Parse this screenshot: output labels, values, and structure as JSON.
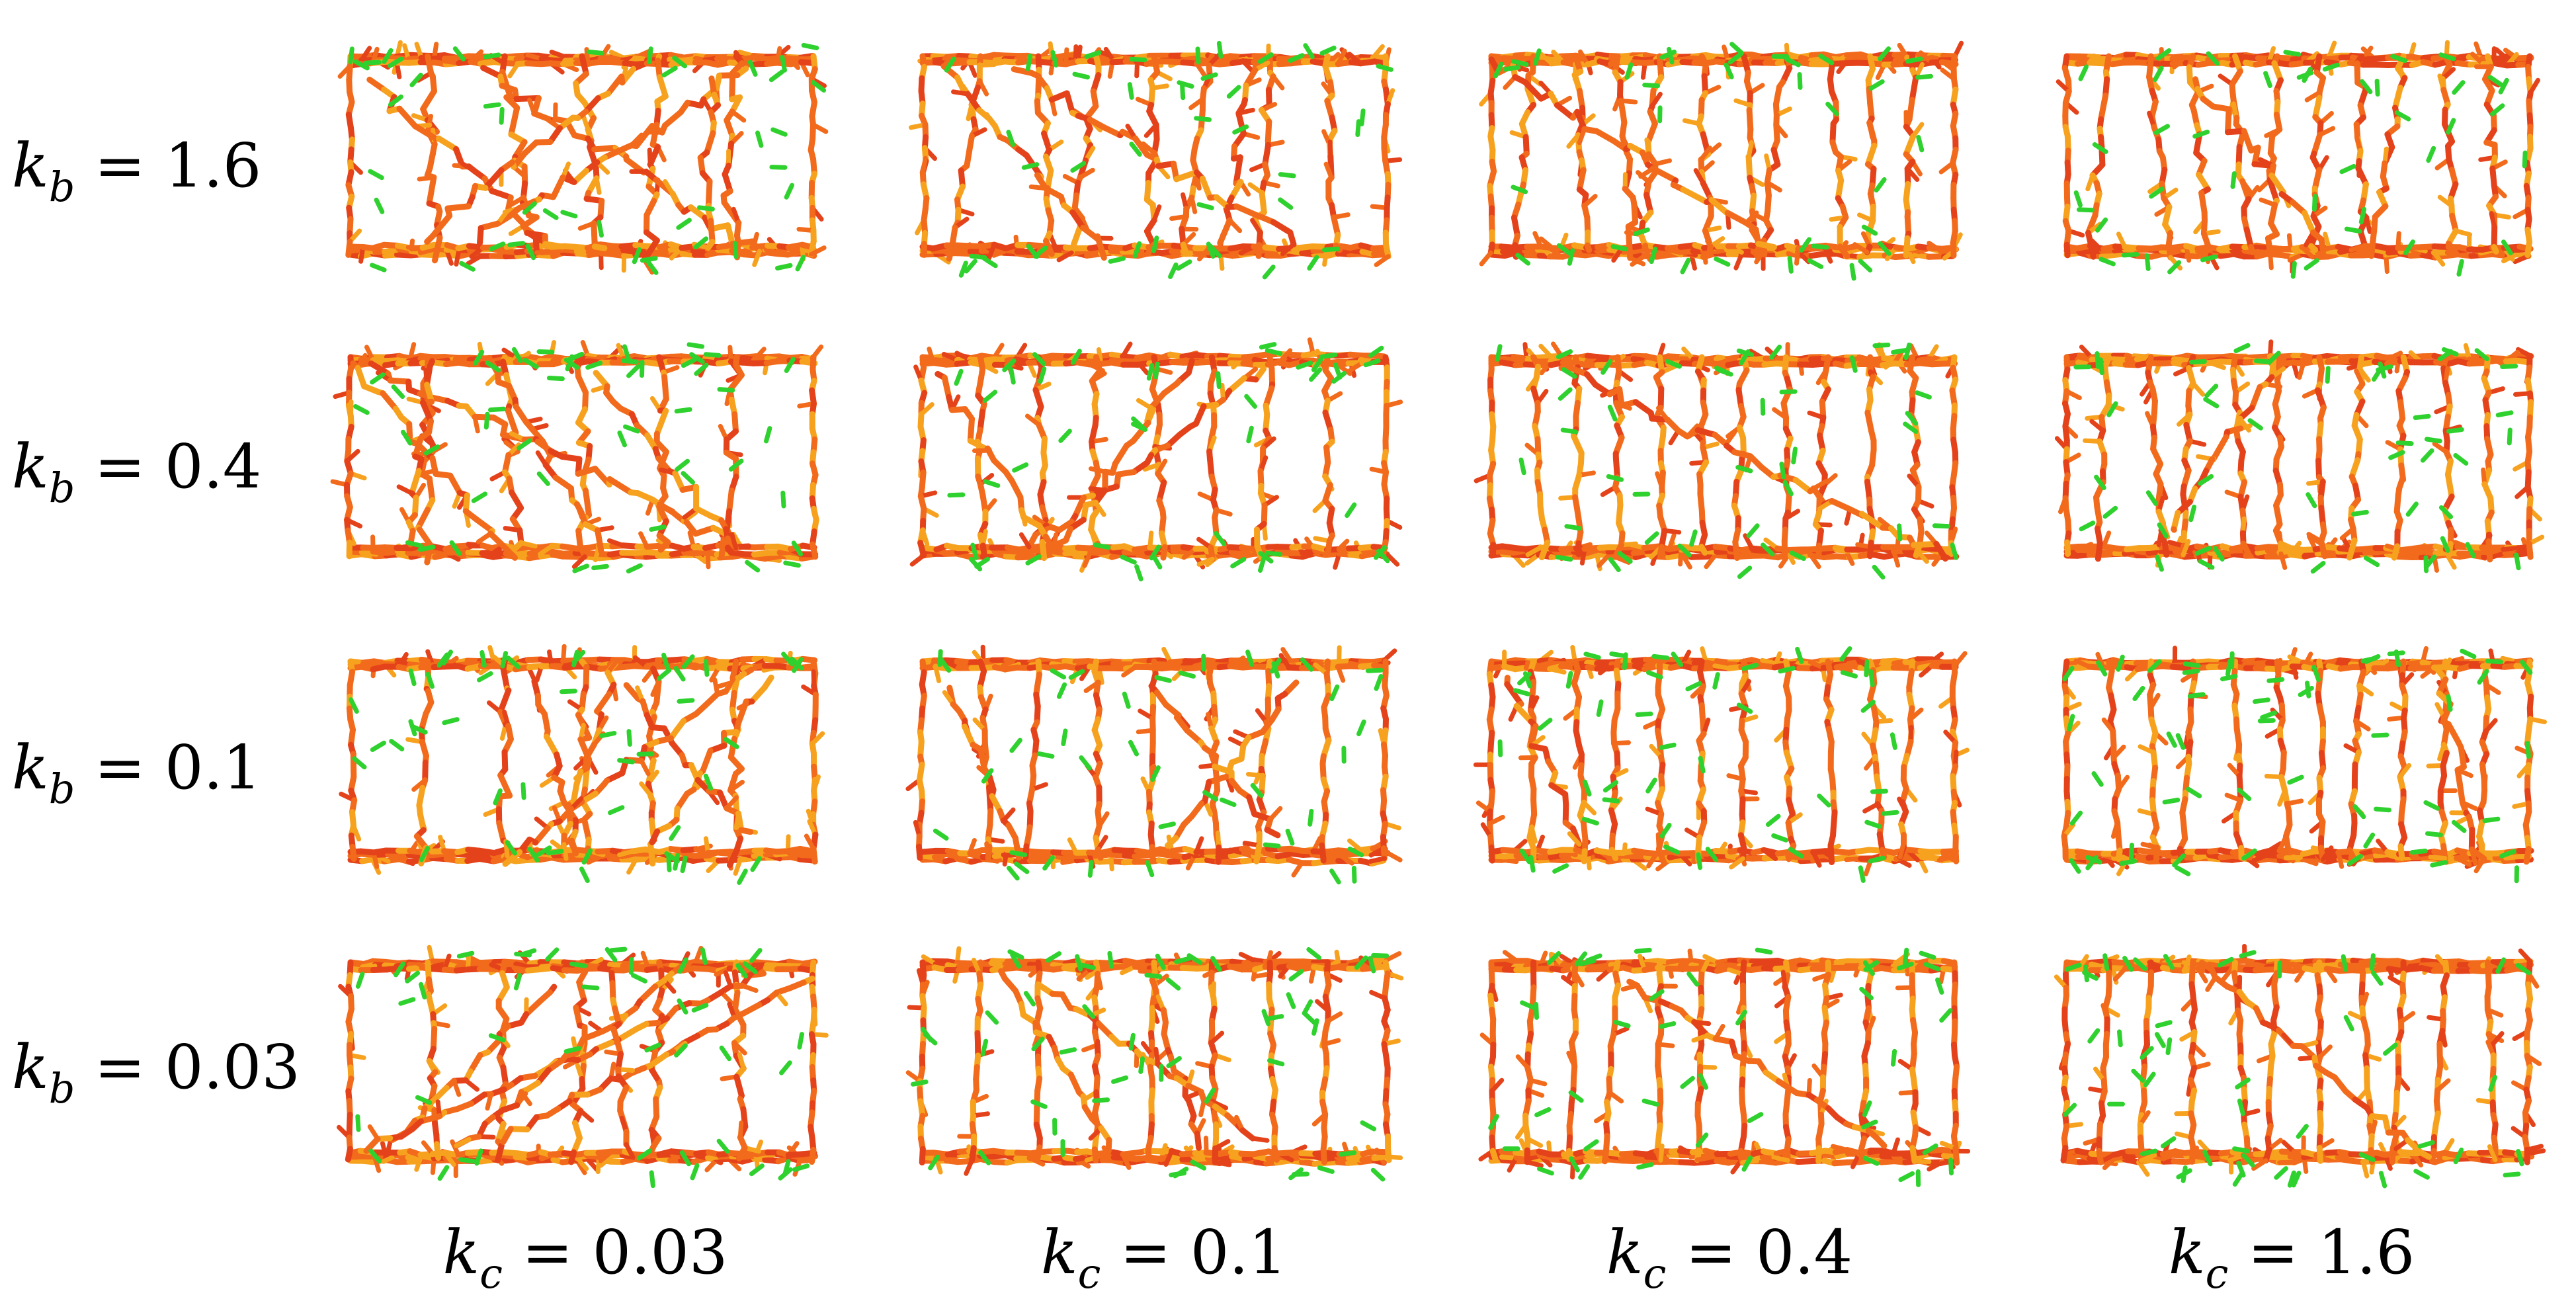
{
  "rows": [
    {
      "var": "k",
      "sub": "b",
      "value": "1.6"
    },
    {
      "var": "k",
      "sub": "b",
      "value": "0.4"
    },
    {
      "var": "k",
      "sub": "b",
      "value": "0.1"
    },
    {
      "var": "k",
      "sub": "b",
      "value": "0.03"
    }
  ],
  "columns": [
    {
      "var": "k",
      "sub": "c",
      "value": "0.03"
    },
    {
      "var": "k",
      "sub": "c",
      "value": "0.1"
    },
    {
      "var": "k",
      "sub": "c",
      "value": "0.4"
    },
    {
      "var": "k",
      "sub": "c",
      "value": "1.6"
    }
  ],
  "colors": {
    "filament": "#f26a1b",
    "filament_dark": "#e4421a",
    "filament_light": "#f7a21f",
    "end_marker": "#2fd12f"
  }
}
